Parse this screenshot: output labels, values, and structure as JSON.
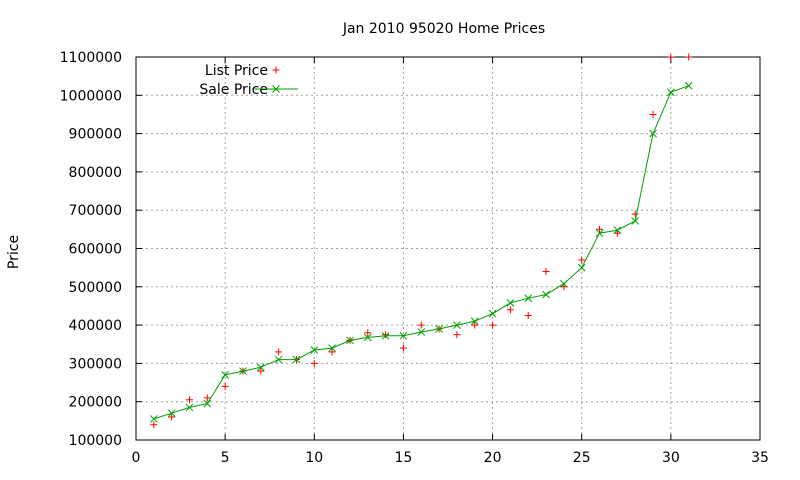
{
  "chart_data": {
    "type": "scatter",
    "title": "Jan 2010 95020 Home Prices",
    "xlabel": "",
    "ylabel": "Price",
    "xlim": [
      0,
      35
    ],
    "ylim": [
      100000,
      1100000
    ],
    "xticks": [
      0,
      5,
      10,
      15,
      20,
      25,
      30,
      35
    ],
    "yticks": [
      100000,
      200000,
      300000,
      400000,
      500000,
      600000,
      700000,
      800000,
      900000,
      1000000,
      1100000
    ],
    "grid": true,
    "legend_position": "top-left",
    "series": [
      {
        "name": "List Price",
        "marker": "plus",
        "line": false,
        "color": "#ff0000",
        "points": [
          [
            1,
            140000
          ],
          [
            2,
            160000
          ],
          [
            3,
            205000
          ],
          [
            4,
            210000
          ],
          [
            5,
            240000
          ],
          [
            6,
            280000
          ],
          [
            7,
            280000
          ],
          [
            8,
            330000
          ],
          [
            9,
            310000
          ],
          [
            10,
            300000
          ],
          [
            11,
            330000
          ],
          [
            12,
            360000
          ],
          [
            13,
            380000
          ],
          [
            14,
            375000
          ],
          [
            15,
            340000
          ],
          [
            16,
            400000
          ],
          [
            17,
            390000
          ],
          [
            18,
            375000
          ],
          [
            19,
            400000
          ],
          [
            20,
            400000
          ],
          [
            21,
            440000
          ],
          [
            22,
            425000
          ],
          [
            23,
            540000
          ],
          [
            24,
            500000
          ],
          [
            25,
            570000
          ],
          [
            26,
            650000
          ],
          [
            27,
            640000
          ],
          [
            28,
            690000
          ],
          [
            29,
            950000
          ],
          [
            30,
            1100000
          ],
          [
            31,
            1100000
          ]
        ]
      },
      {
        "name": "Sale Price",
        "marker": "x",
        "line": true,
        "color": "#00a000",
        "points": [
          [
            1,
            155000
          ],
          [
            2,
            170000
          ],
          [
            3,
            185000
          ],
          [
            4,
            195000
          ],
          [
            5,
            270000
          ],
          [
            6,
            280000
          ],
          [
            7,
            290000
          ],
          [
            8,
            310000
          ],
          [
            9,
            310000
          ],
          [
            10,
            335000
          ],
          [
            11,
            340000
          ],
          [
            12,
            360000
          ],
          [
            13,
            368000
          ],
          [
            14,
            372000
          ],
          [
            15,
            372000
          ],
          [
            16,
            382000
          ],
          [
            17,
            390000
          ],
          [
            18,
            400000
          ],
          [
            19,
            410000
          ],
          [
            20,
            430000
          ],
          [
            21,
            458000
          ],
          [
            22,
            470000
          ],
          [
            23,
            480000
          ],
          [
            24,
            508000
          ],
          [
            25,
            550000
          ],
          [
            26,
            640000
          ],
          [
            27,
            648000
          ],
          [
            28,
            672000
          ],
          [
            29,
            900000
          ],
          [
            30,
            1008000
          ],
          [
            31,
            1025000
          ]
        ]
      }
    ]
  }
}
